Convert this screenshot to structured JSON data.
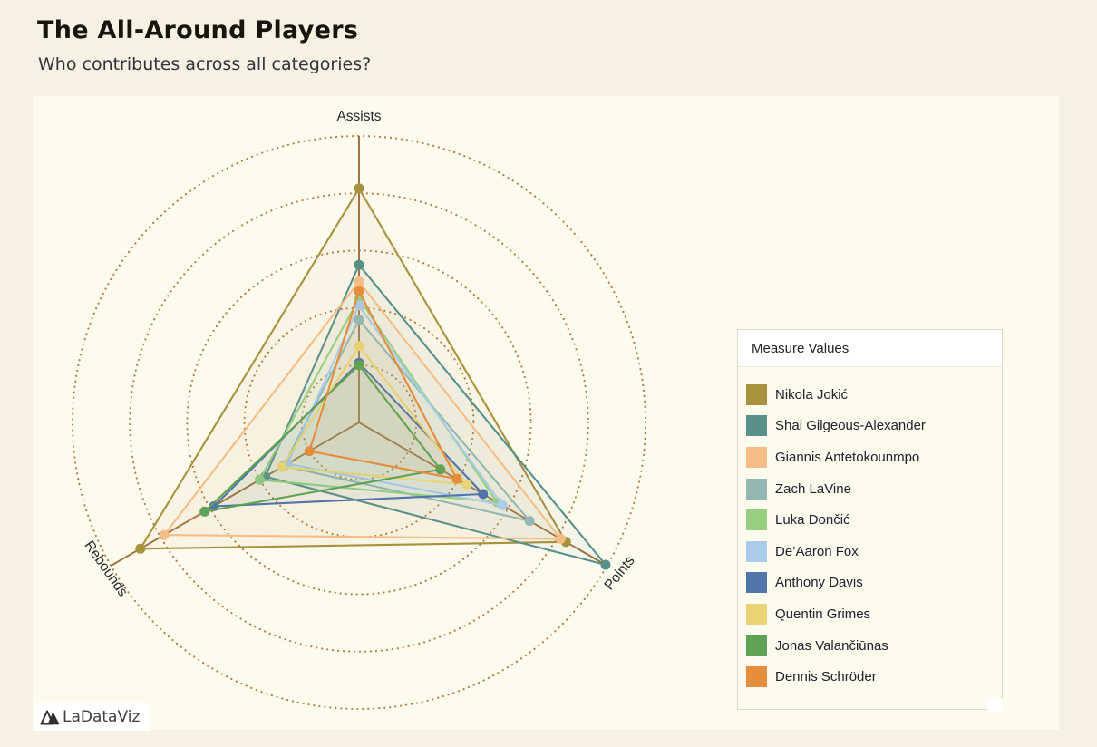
{
  "header": {
    "title": "The All-Around Players",
    "subtitle": "Who contributes across all categories?"
  },
  "legend": {
    "title": "Measure Values"
  },
  "footer": {
    "brand": "LaDataViz"
  },
  "colors": {
    "page_bg": "#f6f1e3",
    "panel_bg": "#fdfaee",
    "ring": "#b1793f",
    "axis_line": "#9e6e3b",
    "label_text": "#28282e"
  },
  "chart_data": {
    "type": "radar",
    "title": "The All-Around Players",
    "subtitle": "Who contributes across all categories?",
    "grid": "dotted-concentric-circles",
    "rings": 5,
    "legend_position": "right",
    "axes": [
      {
        "label": "Assists",
        "angle_deg": 90,
        "max": 12,
        "min": 0
      },
      {
        "label": "Rebounds",
        "angle_deg": 210,
        "max": 13.5,
        "min": 0
      },
      {
        "label": "Points",
        "angle_deg": -30,
        "max": 32,
        "min": 0
      }
    ],
    "series": [
      {
        "name": "Nikola Jokić",
        "color": "#a8923d",
        "values": [
          9.8,
          11.9,
          26.7
        ]
      },
      {
        "name": "Shai Gilgeous-Alexander",
        "color": "#578f8b",
        "values": [
          6.6,
          5.1,
          31.8
        ]
      },
      {
        "name": "Giannis Antetokounmpo",
        "color": "#f5bd86",
        "values": [
          5.9,
          10.6,
          26.0
        ]
      },
      {
        "name": "Zach LaVine",
        "color": "#92b8b1",
        "values": [
          4.3,
          4.1,
          22.0
        ]
      },
      {
        "name": "Luka Dončić",
        "color": "#97ce80",
        "values": [
          5.2,
          5.4,
          17.8
        ]
      },
      {
        "name": "De’Aaron Fox",
        "color": "#aacbe9",
        "values": [
          4.9,
          3.9,
          18.5
        ]
      },
      {
        "name": "Anthony Davis",
        "color": "#5174a9",
        "values": [
          2.5,
          7.9,
          16.0
        ]
      },
      {
        "name": "Quentin Grimes",
        "color": "#ebd377",
        "values": [
          3.2,
          4.2,
          13.9
        ]
      },
      {
        "name": "Jonas Valančiūnas",
        "color": "#5ea355",
        "values": [
          2.4,
          8.4,
          10.5
        ]
      },
      {
        "name": "Dennis Schröder",
        "color": "#e58d3d",
        "values": [
          5.5,
          2.7,
          12.6
        ]
      }
    ]
  }
}
